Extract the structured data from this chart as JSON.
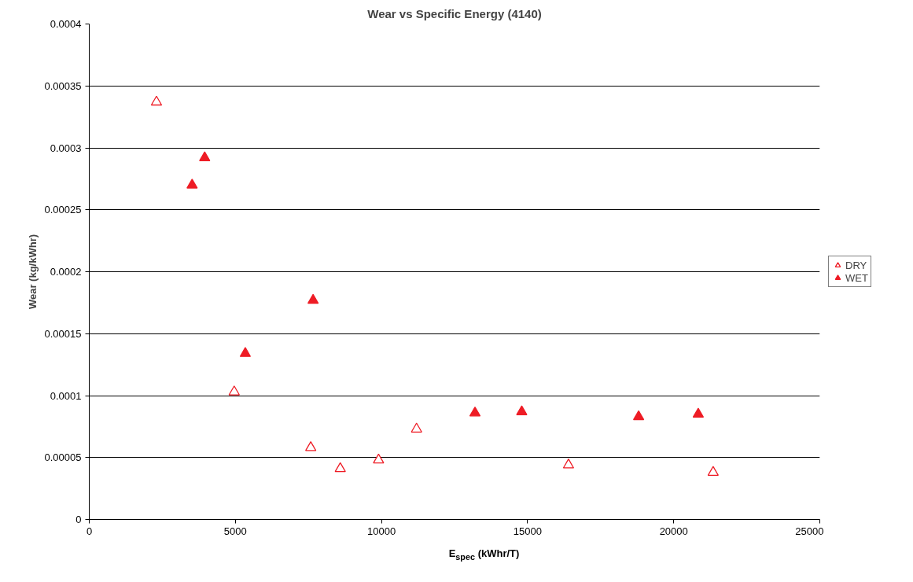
{
  "chart_data": {
    "type": "scatter",
    "title": "Wear vs Specific Energy (4140)",
    "xlabel": "E$_{spec}$ (kWhr/T)",
    "ylabel": "Wear (kg/kWhr)",
    "xlim": [
      0,
      25000
    ],
    "xticks": [
      0,
      5000,
      10000,
      15000,
      20000,
      25000
    ],
    "ylim": [
      0,
      0.0004
    ],
    "yticks": [
      0,
      {
        "value": 5e-05,
        "label": "0.00005"
      },
      {
        "value": 0.0001,
        "label": "0.0001"
      },
      {
        "value": 0.00015,
        "label": "0.00015"
      },
      {
        "value": 0.0002,
        "label": "0.0002"
      },
      {
        "value": 0.00025,
        "label": "0.00025"
      },
      {
        "value": 0.0003,
        "label": "0.0003"
      },
      {
        "value": 0.00035,
        "label": "0.00035"
      },
      {
        "value": 0.0004,
        "label": "0.0004"
      }
    ],
    "grid": "y",
    "legend": "right",
    "marker": "triangle",
    "series": [
      {
        "name": "DRY",
        "color": "#ee1c25",
        "x": [
          2300,
          4960,
          7580,
          8590,
          9900,
          11200,
          16400,
          21350
        ],
        "values": [
          0.000337,
          0.000103,
          5.8e-05,
          4.1e-05,
          4.8e-05,
          7.3e-05,
          4.4e-05,
          3.8e-05
        ]
      },
      {
        "name": "WET",
        "color": "#ee1c25",
        "x": [
          3520,
          3950,
          5340,
          7660,
          13200,
          14800,
          18800,
          20840
        ],
        "values": [
          0.00027,
          0.000292,
          0.000134,
          0.000177,
          8.6e-05,
          8.7e-05,
          8.3e-05,
          8.5e-05
        ]
      }
    ]
  }
}
